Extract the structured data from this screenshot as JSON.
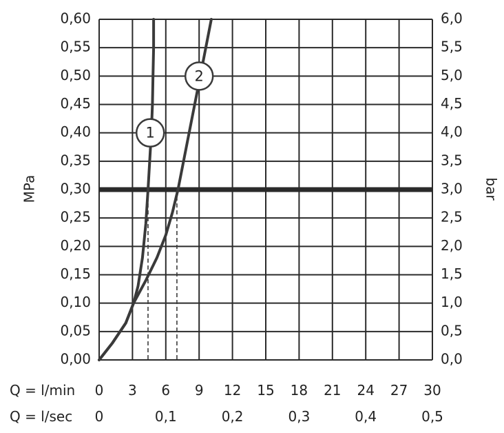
{
  "chart_data": {
    "type": "line",
    "title": "",
    "ylabel_left": "MPa",
    "ylabel_right": "bar",
    "x_axis_1_label": "Q = l/min",
    "x_axis_2_label": "Q = l/sec",
    "xlim": [
      0,
      30
    ],
    "ylim": [
      0,
      0.6
    ],
    "grid": true,
    "x_ticks_lmin": [
      "0",
      "3",
      "6",
      "9",
      "12",
      "15",
      "18",
      "21",
      "24",
      "27",
      "30"
    ],
    "x_ticks_lsec": [
      {
        "value": 0,
        "label": "0"
      },
      {
        "value": 6,
        "label": "0,1"
      },
      {
        "value": 12,
        "label": "0,2"
      },
      {
        "value": 18,
        "label": "0,3"
      },
      {
        "value": 24,
        "label": "0,4"
      },
      {
        "value": 30,
        "label": "0,5"
      }
    ],
    "y_ticks_left": [
      "0,00",
      "0,05",
      "0,10",
      "0,15",
      "0,20",
      "0,25",
      "0,30",
      "0,35",
      "0,40",
      "0,45",
      "0,50",
      "0,55",
      "0,60"
    ],
    "y_ticks_right": [
      "0,0",
      "0,5",
      "1,0",
      "1,5",
      "2,0",
      "2,5",
      "3,0",
      "3,5",
      "4,0",
      "4,5",
      "5,0",
      "5,5",
      "6,0"
    ],
    "reference_line": {
      "y": 0.3
    },
    "series": [
      {
        "name": "1",
        "points": [
          [
            0,
            0
          ],
          [
            1.2,
            0.03
          ],
          [
            2.4,
            0.065
          ],
          [
            3.1,
            0.1
          ],
          [
            3.5,
            0.13
          ],
          [
            3.9,
            0.18
          ],
          [
            4.2,
            0.24
          ],
          [
            4.4,
            0.3
          ],
          [
            4.55,
            0.35
          ],
          [
            4.7,
            0.4
          ],
          [
            4.8,
            0.45
          ],
          [
            4.85,
            0.5
          ],
          [
            4.9,
            0.55
          ],
          [
            4.9,
            0.6
          ]
        ],
        "marker": {
          "x": 4.6,
          "y": 0.4
        },
        "drop_x": 4.4
      },
      {
        "name": "2",
        "points": [
          [
            0,
            0
          ],
          [
            1.2,
            0.03
          ],
          [
            2.4,
            0.065
          ],
          [
            3.1,
            0.1
          ],
          [
            4.2,
            0.14
          ],
          [
            5.2,
            0.18
          ],
          [
            6.0,
            0.22
          ],
          [
            6.6,
            0.26
          ],
          [
            7.1,
            0.3
          ],
          [
            7.6,
            0.35
          ],
          [
            8.2,
            0.41
          ],
          [
            8.8,
            0.47
          ],
          [
            9.4,
            0.53
          ],
          [
            10.1,
            0.6
          ]
        ],
        "marker": {
          "x": 9.0,
          "y": 0.5
        },
        "drop_x": 7.0
      }
    ]
  }
}
